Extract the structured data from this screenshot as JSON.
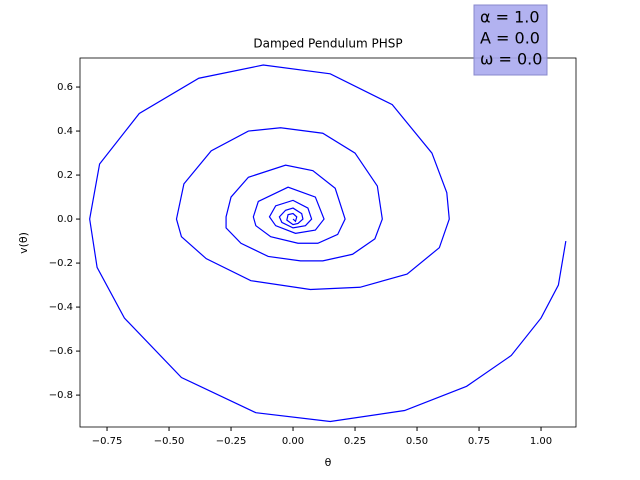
{
  "chart_data": {
    "type": "line",
    "title": "Damped Pendulum PHSP",
    "x_label": "θ",
    "y_label": "v(θ)",
    "annotation": [
      "α = 1.0",
      "A = 0.0",
      "ω = 0.0"
    ],
    "annotation_color": "#aaaaee",
    "xlim": [
      -0.859,
      1.141
    ],
    "ylim": [
      -0.945,
      0.732
    ],
    "xticks": [
      {
        "value": -0.75,
        "label": "−0.75"
      },
      {
        "value": -0.5,
        "label": "−0.50"
      },
      {
        "value": -0.25,
        "label": "−0.25"
      },
      {
        "value": 0,
        "label": "0.00"
      },
      {
        "value": 0.25,
        "label": "0.25"
      },
      {
        "value": 0.5,
        "label": "0.50"
      },
      {
        "value": 0.75,
        "label": "0.75"
      },
      {
        "value": 1,
        "label": "1.00"
      }
    ],
    "yticks": [
      {
        "value": -0.8,
        "label": "−0.8"
      },
      {
        "value": -0.6,
        "label": "−0.6"
      },
      {
        "value": -0.4,
        "label": "−0.4"
      },
      {
        "value": -0.2,
        "label": "−0.2"
      },
      {
        "value": 0,
        "label": "0.0"
      },
      {
        "value": 0.2,
        "label": "0.2"
      },
      {
        "value": 0.4,
        "label": "0.4"
      },
      {
        "value": 0.6,
        "label": "0.6"
      }
    ],
    "grid": false,
    "x": [
      1.1,
      1.07,
      1.0,
      0.88,
      0.7,
      0.45,
      0.15,
      -0.15,
      -0.45,
      -0.68,
      -0.79,
      -0.82,
      -0.78,
      -0.62,
      -0.38,
      -0.12,
      0.15,
      0.4,
      0.56,
      0.62,
      0.63,
      0.59,
      0.46,
      0.27,
      0.07,
      -0.17,
      -0.35,
      -0.45,
      -0.47,
      -0.44,
      -0.33,
      -0.18,
      -0.05,
      0.12,
      0.25,
      0.34,
      0.36,
      0.33,
      0.24,
      0.12,
      0.03,
      -0.1,
      -0.21,
      -0.27,
      -0.27,
      -0.25,
      -0.18,
      -0.03,
      0.08,
      0.17,
      0.21,
      0.18,
      0.1,
      0.02,
      -0.09,
      -0.15,
      -0.16,
      -0.14,
      -0.02,
      0.09,
      0.125,
      0.09,
      0.01,
      -0.07,
      -0.095,
      -0.07,
      0.0,
      0.06,
      0.075,
      0.05,
      0.0,
      -0.045,
      -0.055,
      -0.03,
      0.0,
      0.035,
      0.04,
      0.02,
      0.0,
      -0.025,
      -0.02,
      0.0,
      0.015,
      0.01,
      0.0
    ],
    "series": [
      {
        "color": "#0000ff",
        "values": [
          -0.1,
          -0.3,
          -0.45,
          -0.62,
          -0.76,
          -0.87,
          -0.92,
          -0.88,
          -0.72,
          -0.45,
          -0.22,
          0.0,
          0.25,
          0.48,
          0.64,
          0.7,
          0.66,
          0.52,
          0.3,
          0.12,
          0.0,
          -0.13,
          -0.25,
          -0.31,
          -0.32,
          -0.28,
          -0.18,
          -0.08,
          0.0,
          0.16,
          0.31,
          0.4,
          0.415,
          0.39,
          0.3,
          0.15,
          0.0,
          -0.09,
          -0.16,
          -0.19,
          -0.19,
          -0.17,
          -0.11,
          -0.04,
          0.01,
          0.1,
          0.19,
          0.245,
          0.22,
          0.14,
          0.0,
          -0.07,
          -0.11,
          -0.11,
          -0.08,
          -0.03,
          0.01,
          0.08,
          0.145,
          0.1,
          0.0,
          -0.05,
          -0.065,
          -0.03,
          0.01,
          0.06,
          0.085,
          0.05,
          0.0,
          -0.03,
          -0.04,
          -0.015,
          0.01,
          0.04,
          0.05,
          0.025,
          0.0,
          -0.02,
          -0.025,
          -0.005,
          0.02,
          0.025,
          0.01,
          -0.01,
          0.0
        ]
      }
    ]
  }
}
